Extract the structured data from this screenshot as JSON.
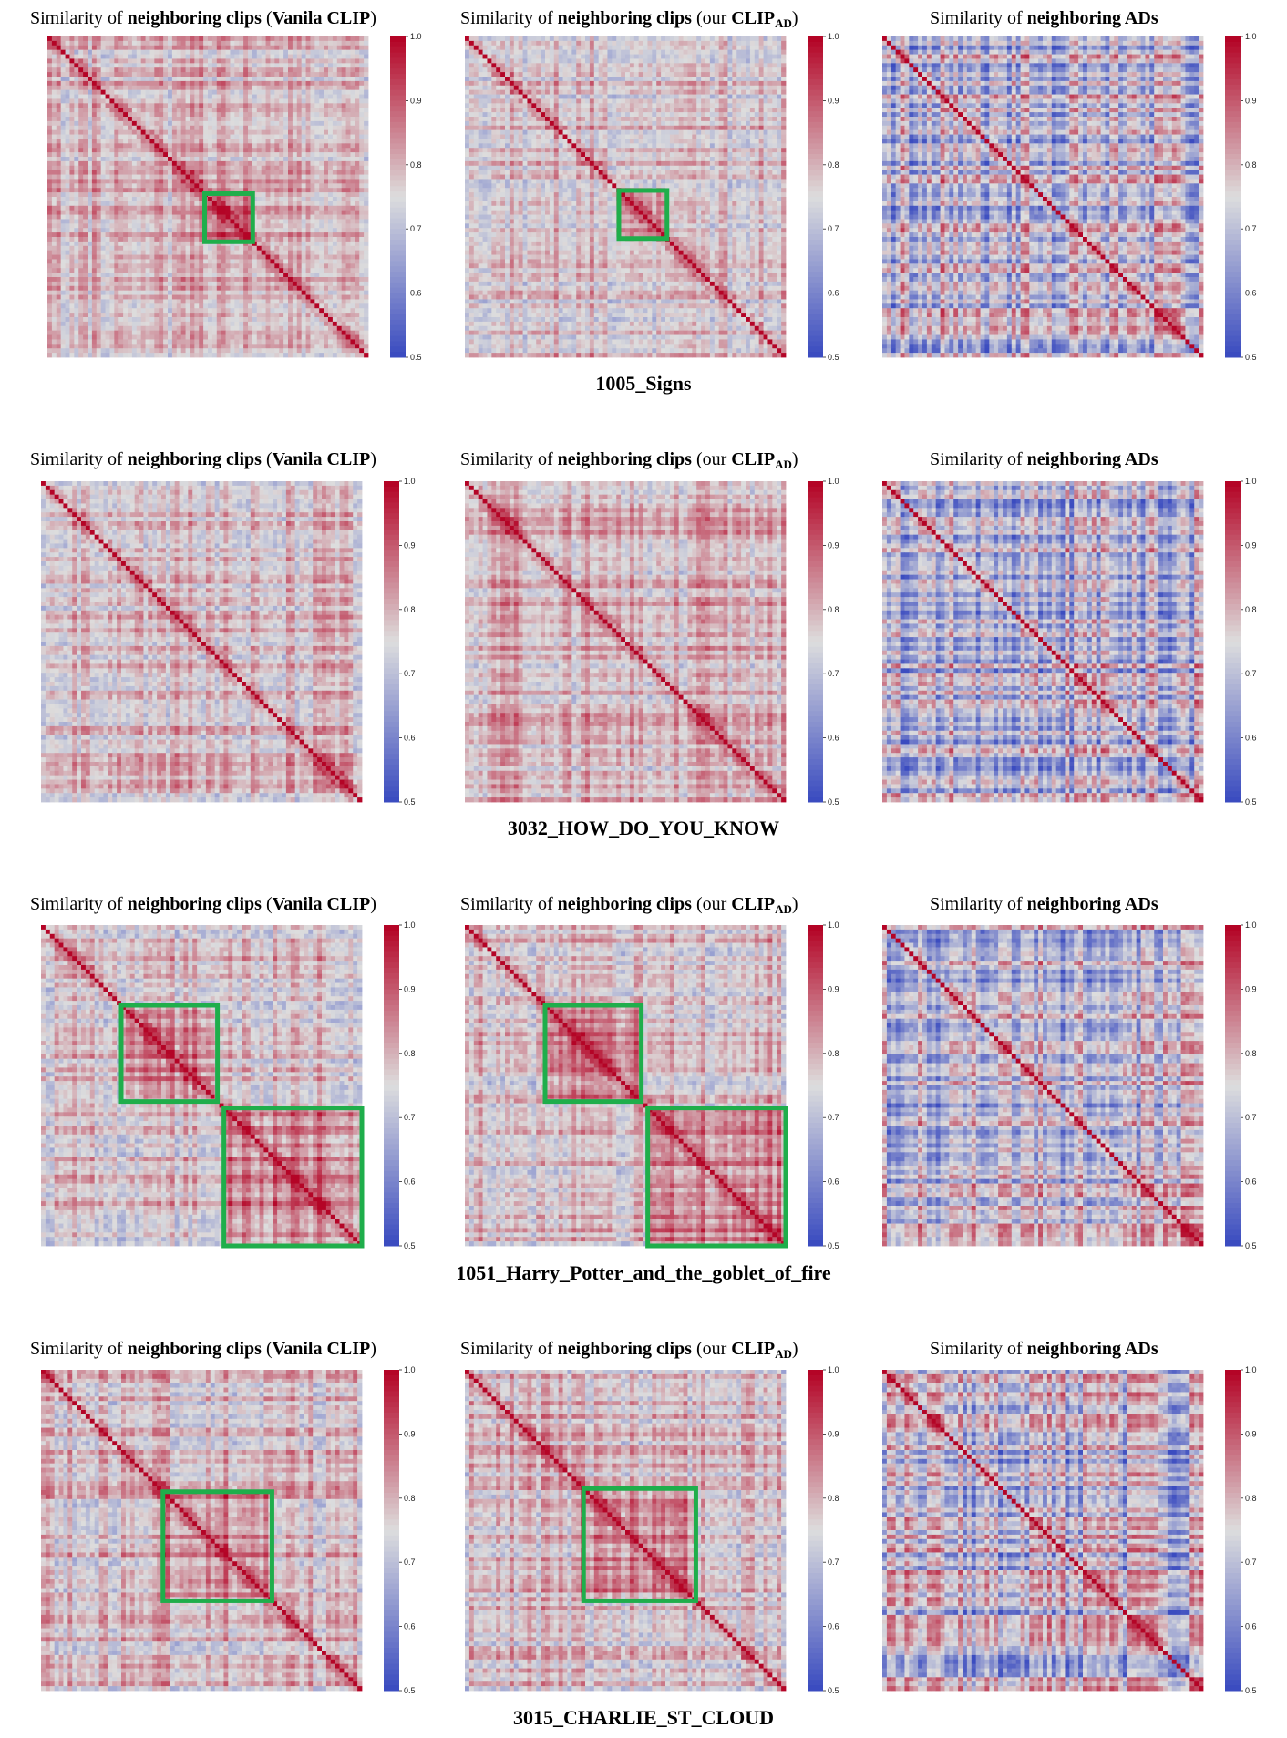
{
  "figure": {
    "title_parts": {
      "prefix": "Similarity of ",
      "bold": "neighboring clips",
      "vanilla_suffix": "Vanila CLIP",
      "ours_prefix": "our ",
      "ours_name": "CLIP",
      "ours_sub": "AD",
      "ads_bold": "neighboring ADs"
    },
    "rows": [
      {
        "label": "1005_Signs"
      },
      {
        "label": "3032_HOW_DO_YOU_KNOW"
      },
      {
        "label": "1051_Harry_Potter_and_the_goblet_of_fire"
      },
      {
        "label": "3015_CHARLIE_ST_CLOUD"
      }
    ],
    "colormap": {
      "low": "#3b4cc0",
      "mid": "#dddddd",
      "high": "#b40426"
    }
  },
  "chart_data": [
    {
      "type": "heatmap",
      "movie": "1005_Signs",
      "panels": [
        {
          "title": "Similarity of neighboring clips (Vanila CLIP)",
          "vmin": 0.5,
          "vmax": 1.0,
          "ticks": [
            "0.5",
            "0.6",
            "0.7",
            "0.8",
            "0.9",
            "1.0"
          ],
          "diagonal": 1.0,
          "highlight_blocks": [
            [
              0.49,
              0.64
            ]
          ]
        },
        {
          "title": "Similarity of neighboring clips (our CLIP_AD)",
          "vmin": 0.5,
          "vmax": 1.0,
          "ticks": [
            "0.5",
            "0.6",
            "0.7",
            "0.8",
            "0.9",
            "1.0"
          ],
          "diagonal": 1.0,
          "highlight_blocks": [
            [
              0.48,
              0.63
            ]
          ]
        },
        {
          "title": "Similarity of neighboring ADs",
          "vmin": 0.5,
          "vmax": 1.0,
          "ticks": [
            "0.5",
            "0.6",
            "0.7",
            "0.8",
            "0.9",
            "1.0"
          ],
          "diagonal": 1.0,
          "highlight_blocks": []
        }
      ]
    },
    {
      "type": "heatmap",
      "movie": "3032_HOW_DO_YOU_KNOW",
      "panels": [
        {
          "title": "Similarity of neighboring clips (Vanila CLIP)",
          "vmin": 0.5,
          "vmax": 1.0,
          "ticks": [
            "0.5",
            "0.6",
            "0.7",
            "0.8",
            "0.9",
            "1.0"
          ],
          "diagonal": 1.0,
          "highlight_blocks": []
        },
        {
          "title": "Similarity of neighboring clips (our CLIP_AD)",
          "vmin": 0.5,
          "vmax": 1.0,
          "ticks": [
            "0.5",
            "0.6",
            "0.7",
            "0.8",
            "0.9",
            "1.0"
          ],
          "diagonal": 1.0,
          "highlight_blocks": []
        },
        {
          "title": "Similarity of neighboring ADs",
          "vmin": 0.5,
          "vmax": 1.0,
          "ticks": [
            "0.5",
            "0.6",
            "0.7",
            "0.8",
            "0.9",
            "1.0"
          ],
          "diagonal": 1.0,
          "highlight_blocks": []
        }
      ]
    },
    {
      "type": "heatmap",
      "movie": "1051_Harry_Potter_and_the_goblet_of_fire",
      "panels": [
        {
          "title": "Similarity of neighboring clips (Vanila CLIP)",
          "vmin": 0.5,
          "vmax": 1.0,
          "ticks": [
            "0.5",
            "0.6",
            "0.7",
            "0.8",
            "0.9",
            "1.0"
          ],
          "diagonal": 1.0,
          "highlight_blocks": [
            [
              0.25,
              0.55
            ],
            [
              0.57,
              1.0
            ]
          ]
        },
        {
          "title": "Similarity of neighboring clips (our CLIP_AD)",
          "vmin": 0.5,
          "vmax": 1.0,
          "ticks": [
            "0.5",
            "0.6",
            "0.7",
            "0.8",
            "0.9",
            "1.0"
          ],
          "diagonal": 1.0,
          "highlight_blocks": [
            [
              0.25,
              0.55
            ],
            [
              0.57,
              1.0
            ]
          ]
        },
        {
          "title": "Similarity of neighboring ADs",
          "vmin": 0.5,
          "vmax": 1.0,
          "ticks": [
            "0.5",
            "0.6",
            "0.7",
            "0.8",
            "0.9",
            "1.0"
          ],
          "diagonal": 1.0,
          "highlight_blocks": []
        }
      ]
    },
    {
      "type": "heatmap",
      "movie": "3015_CHARLIE_ST_CLOUD",
      "panels": [
        {
          "title": "Similarity of neighboring clips (Vanila CLIP)",
          "vmin": 0.5,
          "vmax": 1.0,
          "ticks": [
            "0.5",
            "0.6",
            "0.7",
            "0.8",
            "0.9",
            "1.0"
          ],
          "diagonal": 1.0,
          "highlight_blocks": [
            [
              0.38,
              0.72
            ]
          ]
        },
        {
          "title": "Similarity of neighboring clips (our CLIP_AD)",
          "vmin": 0.5,
          "vmax": 1.0,
          "ticks": [
            "0.5",
            "0.6",
            "0.7",
            "0.8",
            "0.9",
            "1.0"
          ],
          "diagonal": 1.0,
          "highlight_blocks": [
            [
              0.37,
              0.72
            ]
          ]
        },
        {
          "title": "Similarity of neighboring ADs",
          "vmin": 0.5,
          "vmax": 1.0,
          "ticks": [
            "0.5",
            "0.6",
            "0.7",
            "0.8",
            "0.9",
            "1.0"
          ],
          "diagonal": 1.0,
          "highlight_blocks": []
        }
      ]
    }
  ]
}
